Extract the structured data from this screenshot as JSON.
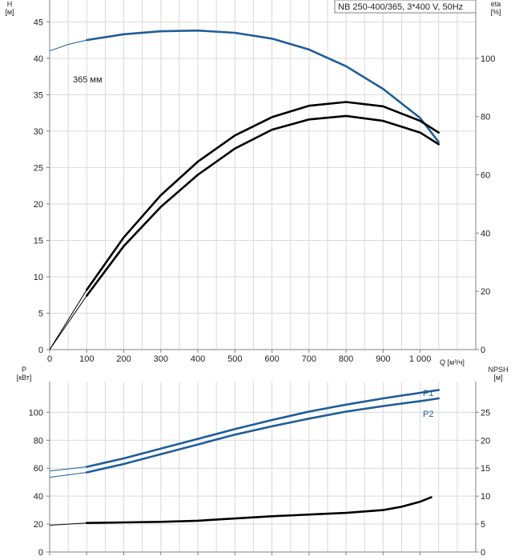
{
  "colors": {
    "blue": "#1f5d99",
    "black": "#000000",
    "grid": "#d9d9d9",
    "frame": "#808080",
    "text": "#222222",
    "legend_bg": "#f0f0f0"
  },
  "chart_data": [
    {
      "type": "line",
      "title": "NB 250-400/365, 3*400 V, 50Hz",
      "xlabel": "Q [м³/ч]",
      "ylabel": "H\n[м]",
      "y2label": "eta\n[%]",
      "xlim": [
        0,
        1150
      ],
      "ylim": [
        0,
        48
      ],
      "y2lim": [
        0,
        120
      ],
      "grid": true,
      "x_ticks": [
        {
          "value": 0,
          "label": "0"
        },
        {
          "value": 100,
          "label": "100"
        },
        {
          "value": 200,
          "label": "200"
        },
        {
          "value": 300,
          "label": "300"
        },
        {
          "value": 400,
          "label": "400"
        },
        {
          "value": 500,
          "label": "500"
        },
        {
          "value": 600,
          "label": "600"
        },
        {
          "value": 700,
          "label": "700"
        },
        {
          "value": 800,
          "label": "800"
        },
        {
          "value": 900,
          "label": "900"
        },
        {
          "value": 1000,
          "label": "1 000"
        }
      ],
      "y_ticks": [
        0,
        5,
        10,
        15,
        20,
        25,
        30,
        35,
        40,
        45
      ],
      "y2_ticks": [
        0,
        20,
        40,
        60,
        80,
        100
      ],
      "series": [
        {
          "name": "365 мм",
          "axis": "left",
          "color": "#1f5d99",
          "thin_until": 100,
          "points": [
            [
              0,
              41.0
            ],
            [
              50,
              41.9
            ],
            [
              100,
              42.5
            ],
            [
              200,
              43.3
            ],
            [
              300,
              43.7
            ],
            [
              400,
              43.8
            ],
            [
              500,
              43.5
            ],
            [
              600,
              42.7
            ],
            [
              700,
              41.2
            ],
            [
              800,
              38.9
            ],
            [
              900,
              35.8
            ],
            [
              1000,
              31.8
            ],
            [
              1050,
              28.5
            ]
          ]
        },
        {
          "axis": "right",
          "color": "#000000",
          "thin_until": 100,
          "points": [
            [
              0,
              0
            ],
            [
              100,
              20.5
            ],
            [
              200,
              38.5
            ],
            [
              300,
              53.0
            ],
            [
              400,
              64.5
            ],
            [
              500,
              73.5
            ],
            [
              600,
              79.8
            ],
            [
              700,
              83.7
            ],
            [
              800,
              85.0
            ],
            [
              900,
              83.5
            ],
            [
              1000,
              78.5
            ],
            [
              1050,
              74.5
            ]
          ]
        },
        {
          "axis": "right",
          "color": "#000000",
          "thin_until": 100,
          "points": [
            [
              0,
              0
            ],
            [
              100,
              18.5
            ],
            [
              200,
              35.5
            ],
            [
              300,
              49.0
            ],
            [
              400,
              60.0
            ],
            [
              500,
              69.0
            ],
            [
              600,
              75.5
            ],
            [
              700,
              79.0
            ],
            [
              800,
              80.2
            ],
            [
              900,
              78.5
            ],
            [
              1000,
              74.5
            ],
            [
              1050,
              70.5
            ]
          ]
        }
      ]
    },
    {
      "type": "line",
      "xlabel": "",
      "ylabel": "P\n[кВт]",
      "y2label": "NPSH\n[м]",
      "xlim": [
        0,
        1150
      ],
      "ylim": [
        0,
        122
      ],
      "y2lim": [
        0,
        30.5
      ],
      "grid": true,
      "y_ticks": [
        0,
        20,
        40,
        60,
        80,
        100
      ],
      "y2_ticks": [
        0,
        5,
        10,
        15,
        20,
        25
      ],
      "series": [
        {
          "name": "P1",
          "axis": "left",
          "color": "#1f5d99",
          "thin_until": 100,
          "points": [
            [
              0,
              58.0
            ],
            [
              100,
              61.0
            ],
            [
              200,
              67.0
            ],
            [
              300,
              74.0
            ],
            [
              400,
              81.0
            ],
            [
              500,
              88.0
            ],
            [
              600,
              94.5
            ],
            [
              700,
              100.5
            ],
            [
              800,
              105.5
            ],
            [
              900,
              110.0
            ],
            [
              1000,
              114.0
            ],
            [
              1050,
              116.0
            ]
          ]
        },
        {
          "name": "P2",
          "axis": "left",
          "color": "#1f5d99",
          "thin_until": 100,
          "points": [
            [
              0,
              53.5
            ],
            [
              100,
              57.0
            ],
            [
              200,
              63.0
            ],
            [
              300,
              70.0
            ],
            [
              400,
              77.0
            ],
            [
              500,
              84.0
            ],
            [
              600,
              90.0
            ],
            [
              700,
              95.5
            ],
            [
              800,
              100.5
            ],
            [
              900,
              104.5
            ],
            [
              1000,
              108.0
            ],
            [
              1050,
              110.0
            ]
          ]
        },
        {
          "axis": "right",
          "color": "#000000",
          "thin_until": 100,
          "points": [
            [
              0,
              4.8
            ],
            [
              100,
              5.2
            ],
            [
              200,
              5.3
            ],
            [
              300,
              5.4
            ],
            [
              400,
              5.6
            ],
            [
              500,
              6.0
            ],
            [
              600,
              6.4
            ],
            [
              700,
              6.7
            ],
            [
              800,
              7.0
            ],
            [
              900,
              7.5
            ],
            [
              950,
              8.1
            ],
            [
              1000,
              9.0
            ],
            [
              1030,
              9.8
            ]
          ]
        }
      ]
    }
  ]
}
